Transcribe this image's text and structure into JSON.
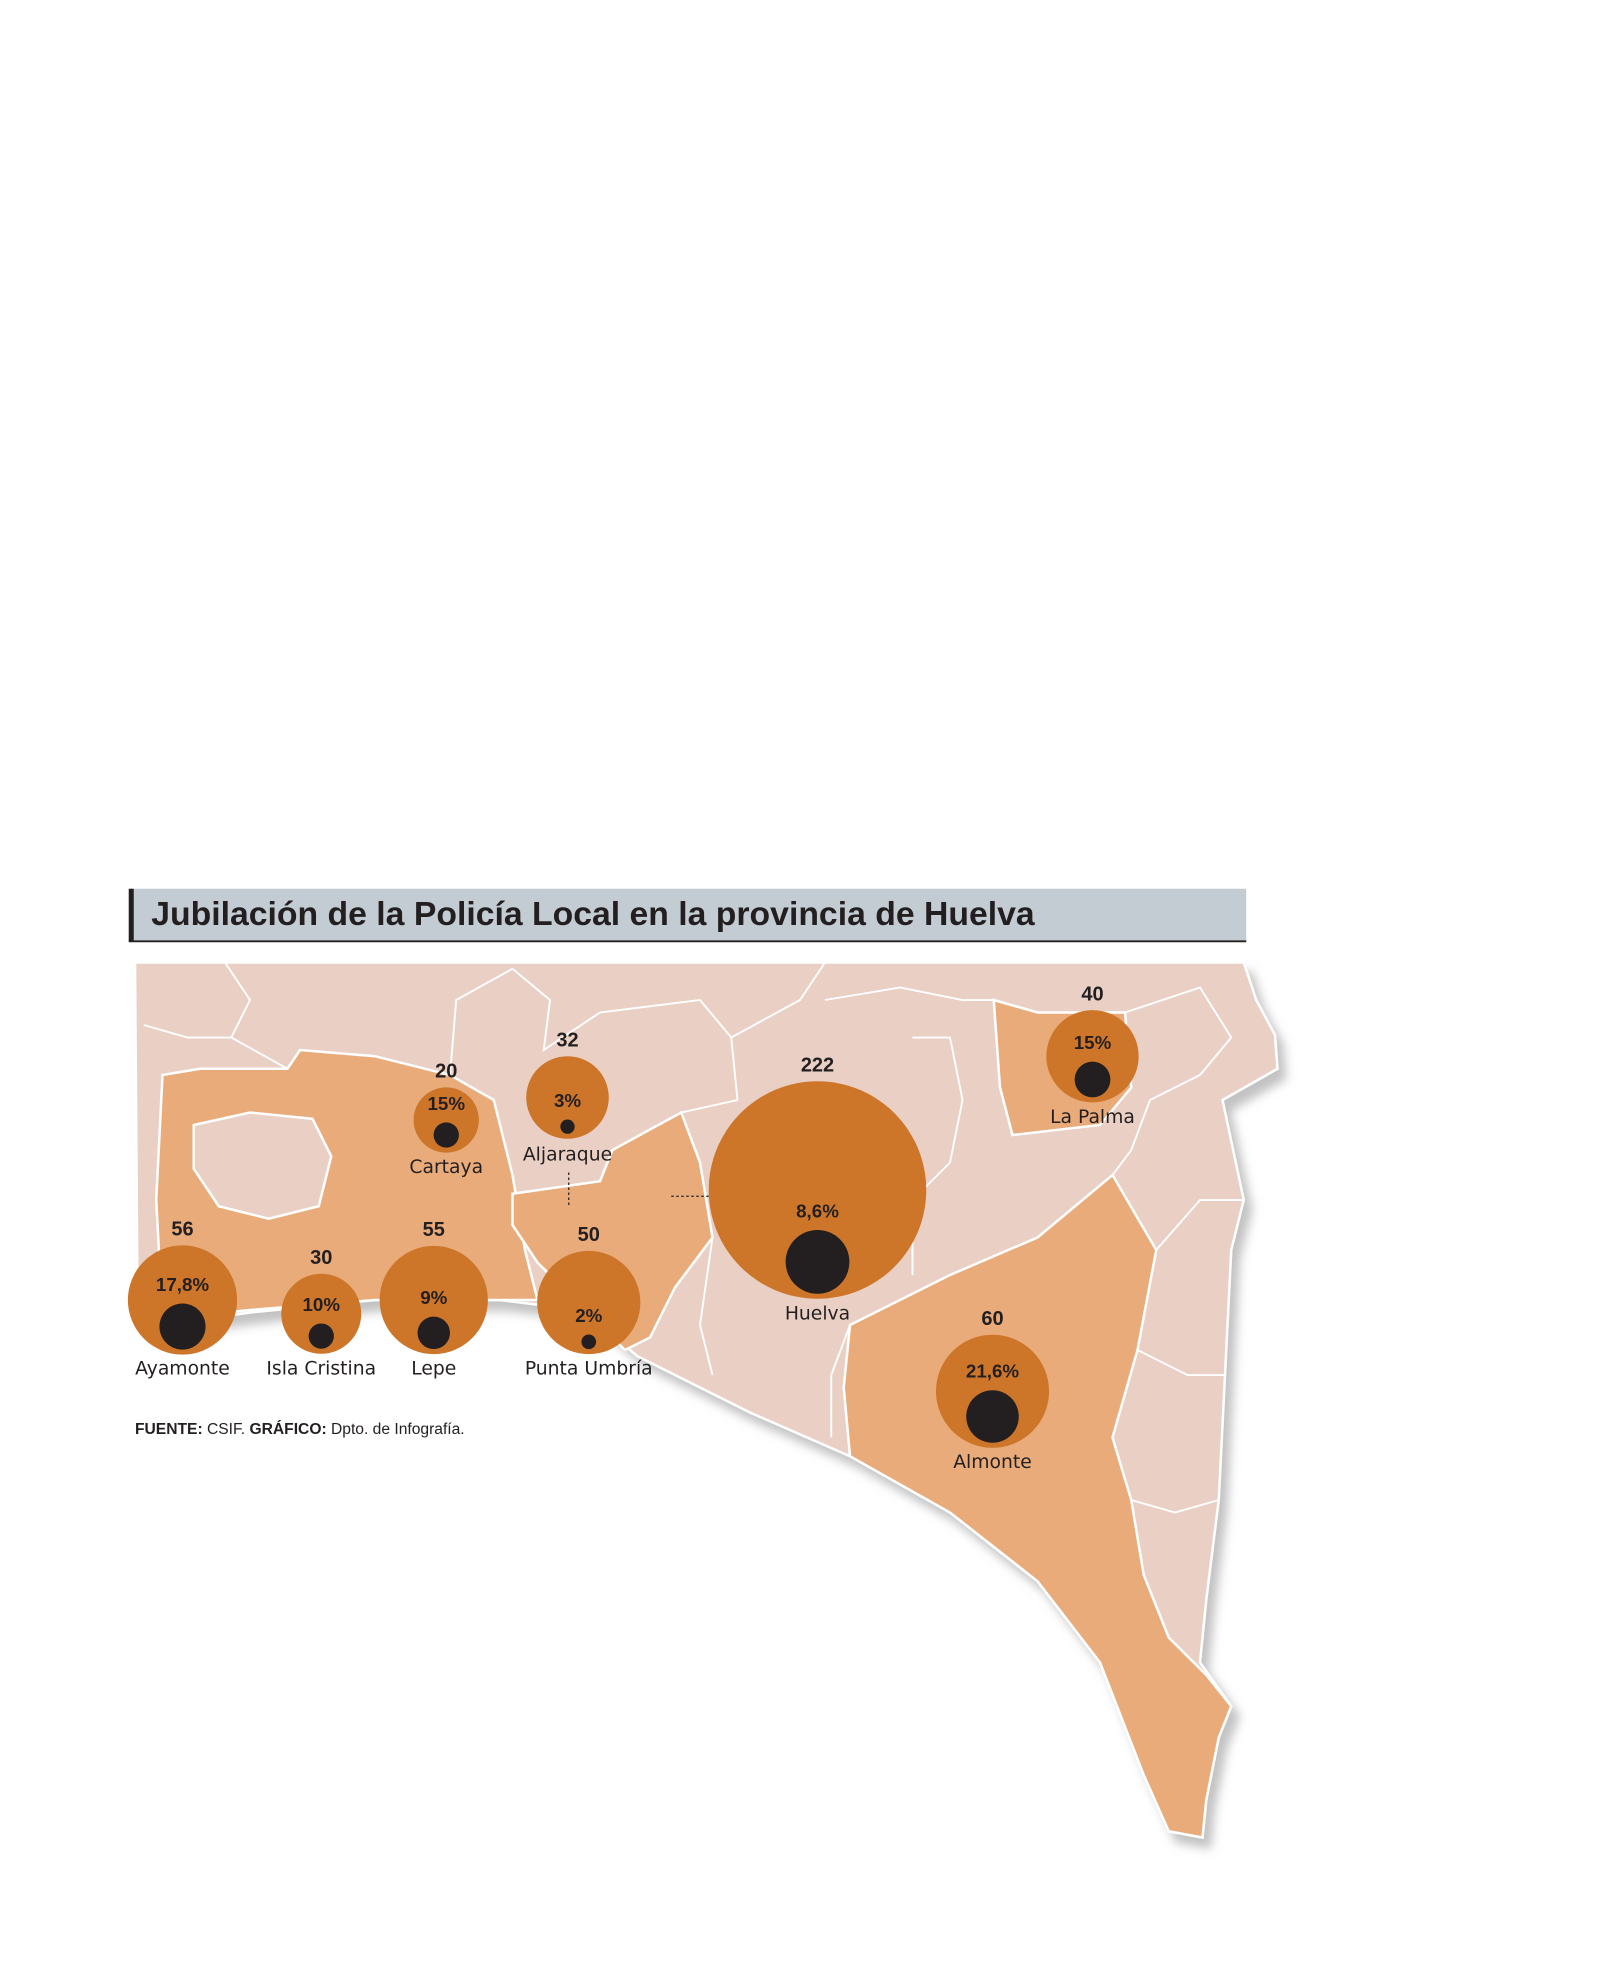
{
  "title": "Jubilación de la Policía Local en la provincia de Huelva",
  "source": {
    "label": "FUENTE:",
    "text": "CSIF.",
    "graphic_label": "GRÁFICO:",
    "graphic_text": "Dpto. de Infografía."
  },
  "cities": [
    {
      "name": "Ayamonte",
      "total": 56,
      "percent": 17.8,
      "percent_label": "17,8%"
    },
    {
      "name": "Isla Cristina",
      "total": 30,
      "percent": 10,
      "percent_label": "10%"
    },
    {
      "name": "Lepe",
      "total": 55,
      "percent": 9,
      "percent_label": "9%"
    },
    {
      "name": "Punta Umbría",
      "total": 50,
      "percent": 2,
      "percent_label": "2%"
    },
    {
      "name": "Cartaya",
      "total": 20,
      "percent": 15,
      "percent_label": "15%"
    },
    {
      "name": "Aljaraque",
      "total": 32,
      "percent": 3,
      "percent_label": "3%"
    },
    {
      "name": "Huelva",
      "total": 222,
      "percent": 8.6,
      "percent_label": "8,6%"
    },
    {
      "name": "La Palma",
      "total": 40,
      "percent": 15,
      "percent_label": "15%"
    },
    {
      "name": "Almonte",
      "total": 60,
      "percent": 21.6,
      "percent_label": "21,6%"
    }
  ]
}
